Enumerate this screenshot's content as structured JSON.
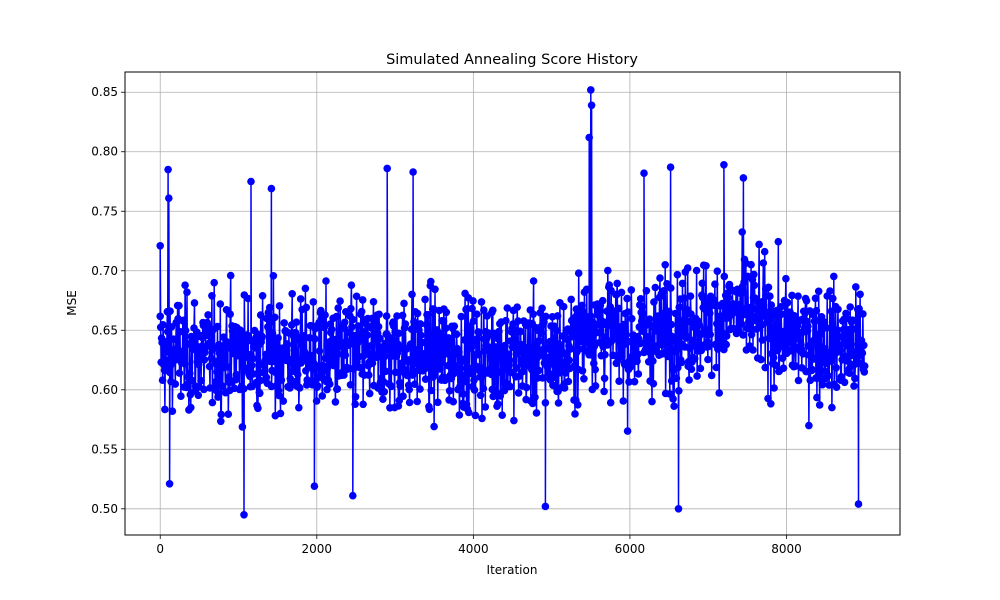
{
  "chart_data": {
    "type": "line",
    "title": "Simulated Annealing Score History",
    "xlabel": "Iteration",
    "ylabel": "MSE",
    "xlim": [
      -450,
      9450
    ],
    "ylim": [
      0.478,
      0.867
    ],
    "xticks": [
      0,
      2000,
      4000,
      6000,
      8000
    ],
    "xtick_labels": [
      "0",
      "2000",
      "4000",
      "6000",
      "8000"
    ],
    "yticks": [
      0.5,
      0.55,
      0.6,
      0.65,
      0.7,
      0.75,
      0.8,
      0.85
    ],
    "ytick_labels": [
      "0.50",
      "0.55",
      "0.60",
      "0.65",
      "0.70",
      "0.75",
      "0.80",
      "0.85"
    ],
    "grid": true,
    "series": [
      {
        "name": "MSE",
        "color": "#0000ff",
        "marker": "circle",
        "n_points": 9000,
        "x_range": [
          0,
          8999
        ],
        "baseline": [
          [
            0,
            0.63
          ],
          [
            5200,
            0.63
          ],
          [
            5500,
            0.655
          ],
          [
            6000,
            0.64
          ],
          [
            7000,
            0.66
          ],
          [
            7500,
            0.665
          ],
          [
            8000,
            0.645
          ],
          [
            9000,
            0.635
          ]
        ],
        "spread": 0.045,
        "notable_points": [
          {
            "x": 0,
            "y": 0.721
          },
          {
            "x": 100,
            "y": 0.785
          },
          {
            "x": 110,
            "y": 0.761
          },
          {
            "x": 120,
            "y": 0.521
          },
          {
            "x": 1070,
            "y": 0.495
          },
          {
            "x": 1160,
            "y": 0.775
          },
          {
            "x": 1420,
            "y": 0.769
          },
          {
            "x": 1970,
            "y": 0.519
          },
          {
            "x": 2460,
            "y": 0.511
          },
          {
            "x": 2900,
            "y": 0.786
          },
          {
            "x": 3230,
            "y": 0.783
          },
          {
            "x": 4920,
            "y": 0.502
          },
          {
            "x": 5500,
            "y": 0.852
          },
          {
            "x": 5510,
            "y": 0.839
          },
          {
            "x": 5480,
            "y": 0.812
          },
          {
            "x": 6180,
            "y": 0.782
          },
          {
            "x": 6520,
            "y": 0.787
          },
          {
            "x": 6620,
            "y": 0.5
          },
          {
            "x": 7200,
            "y": 0.789
          },
          {
            "x": 7450,
            "y": 0.778
          },
          {
            "x": 8920,
            "y": 0.504
          },
          {
            "x": 8999,
            "y": 0.62
          }
        ]
      }
    ]
  }
}
